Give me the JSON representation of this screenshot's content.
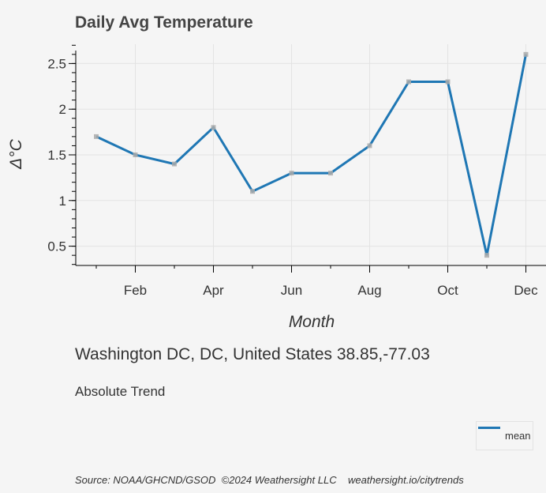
{
  "chart_data": {
    "type": "line",
    "title": "Daily Avg Temperature",
    "xlabel": "Month",
    "ylabel": "Δ°C",
    "x_tick_labels": [
      "Feb",
      "Apr",
      "Jun",
      "Aug",
      "Oct",
      "Dec"
    ],
    "y_tick_labels": [
      "0.5",
      "1",
      "1.5",
      "2",
      "2.5"
    ],
    "ylim": [
      0.3,
      2.7
    ],
    "grid": true,
    "legend_position": "bottom-right",
    "series": [
      {
        "name": "mean",
        "color": "#1f77b4",
        "x": [
          "Jan",
          "Feb",
          "Mar",
          "Apr",
          "May",
          "Jun",
          "Jul",
          "Aug",
          "Sep",
          "Oct",
          "Nov",
          "Dec"
        ],
        "values": [
          1.7,
          1.5,
          1.4,
          1.8,
          1.1,
          1.3,
          1.3,
          1.6,
          2.3,
          2.3,
          0.4,
          2.6
        ]
      }
    ]
  },
  "location": "Washington DC, DC, United States 38.85,-77.03",
  "subtitle": "Absolute Trend",
  "source": "Source: NOAA/GHCND/GSOD  ©2024 Weathersight LLC    weathersight.io/citytrends"
}
